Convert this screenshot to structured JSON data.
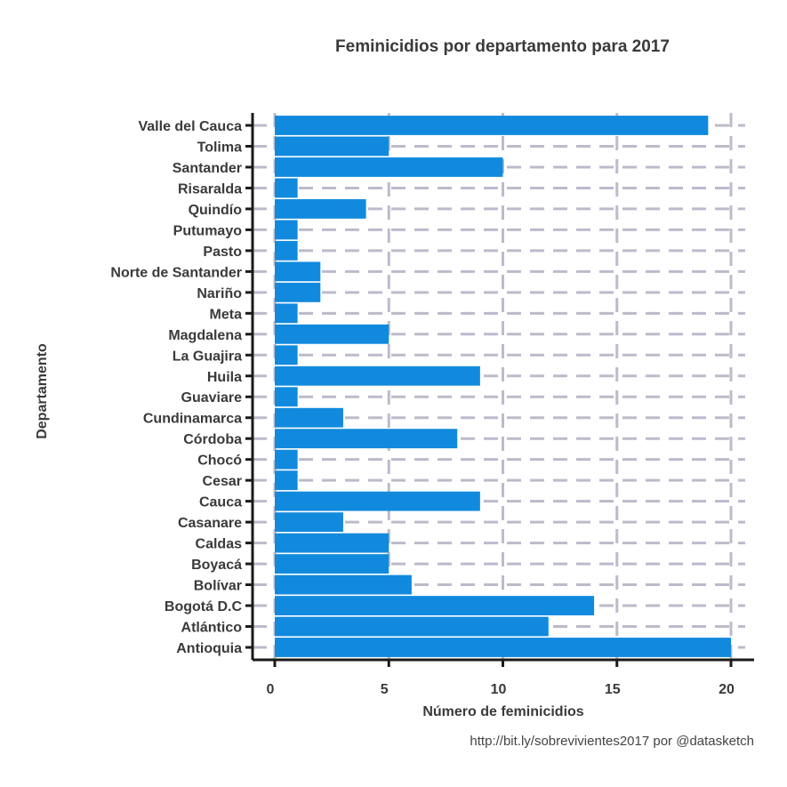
{
  "chart_data": {
    "type": "bar",
    "orientation": "horizontal",
    "title": "Feminicidios por departamento para 2017",
    "xlabel": "Número de feminicidios",
    "ylabel": "Departamento",
    "caption": "http://bit.ly/sobrevivientes2017 por @datasketch",
    "categories": [
      "Antioquia",
      "Atlántico",
      "Bogotá D.C",
      "Bolívar",
      "Boyacá",
      "Caldas",
      "Casanare",
      "Cauca",
      "Cesar",
      "Chocó",
      "Córdoba",
      "Cundinamarca",
      "Guaviare",
      "Huila",
      "La Guajira",
      "Magdalena",
      "Meta",
      "Nariño",
      "Norte de Santander",
      "Pasto",
      "Putumayo",
      "Quindío",
      "Risaralda",
      "Santander",
      "Tolima",
      "Valle del Cauca"
    ],
    "values": [
      20,
      12,
      14,
      6,
      5,
      5,
      3,
      9,
      1,
      1,
      8,
      3,
      1,
      9,
      1,
      5,
      1,
      2,
      2,
      1,
      1,
      4,
      1,
      10,
      5,
      19
    ],
    "xlim": [
      0,
      20.5
    ],
    "xticks": [
      0,
      5,
      10,
      15,
      20
    ],
    "grid": true,
    "legend": "none",
    "bar_color": "#118ade",
    "grid_color": "#bbbbcc",
    "axis_color": "#1a1a1a"
  }
}
